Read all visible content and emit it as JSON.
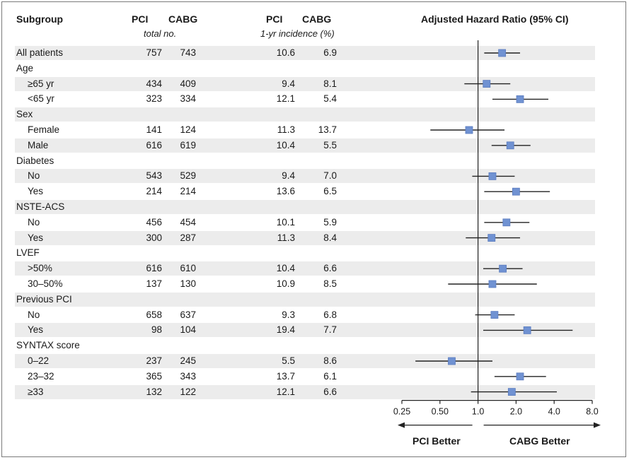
{
  "headers": {
    "subgroup": "Subgroup",
    "pci_n": "PCI",
    "cabg_n": "CABG",
    "counts_sub": "total no.",
    "pci_inc": "PCI",
    "cabg_inc": "CABG",
    "incidence_sub": "1-yr incidence (%)",
    "hr": "Adjusted Hazard Ratio (95% CI)"
  },
  "footer": {
    "left": "PCI Better",
    "right": "CABG Better"
  },
  "colors": {
    "marker": "#7092d2",
    "shade": "#ececec",
    "line": "#222222"
  },
  "chart_data": {
    "type": "forest",
    "xscale": "log2",
    "xlim": [
      0.25,
      8.0
    ],
    "xticks": [
      0.25,
      0.5,
      1.0,
      2.0,
      4.0,
      8.0
    ],
    "xtick_labels": [
      "0.25",
      "0.50",
      "1.0",
      "2.0",
      "4.0",
      "8.0"
    ],
    "reference_line": 1.0,
    "rows": [
      {
        "label": "All patients",
        "indent": false,
        "pci_n": "757",
        "cabg_n": "743",
        "pci_inc": "10.6",
        "cabg_inc": "6.9",
        "hr": 1.55,
        "lo": 1.12,
        "hi": 2.15
      },
      {
        "label": "Age",
        "indent": false,
        "header": true
      },
      {
        "label": "≥65 yr",
        "indent": true,
        "pci_n": "434",
        "cabg_n": "409",
        "pci_inc": "9.4",
        "cabg_inc": "8.1",
        "hr": 1.17,
        "lo": 0.78,
        "hi": 1.8
      },
      {
        "label": "<65 yr",
        "indent": true,
        "pci_n": "323",
        "cabg_n": "334",
        "pci_inc": "12.1",
        "cabg_inc": "5.4",
        "hr": 2.15,
        "lo": 1.3,
        "hi": 3.6
      },
      {
        "label": "Sex",
        "indent": false,
        "header": true
      },
      {
        "label": "Female",
        "indent": true,
        "pci_n": "141",
        "cabg_n": "124",
        "pci_inc": "11.3",
        "cabg_inc": "13.7",
        "hr": 0.85,
        "lo": 0.42,
        "hi": 1.62
      },
      {
        "label": "Male",
        "indent": true,
        "pci_n": "616",
        "cabg_n": "619",
        "pci_inc": "10.4",
        "cabg_inc": "5.5",
        "hr": 1.8,
        "lo": 1.28,
        "hi": 2.6
      },
      {
        "label": "Diabetes",
        "indent": false,
        "header": true
      },
      {
        "label": "No",
        "indent": true,
        "pci_n": "543",
        "cabg_n": "529",
        "pci_inc": "9.4",
        "cabg_inc": "7.0",
        "hr": 1.3,
        "lo": 0.9,
        "hi": 1.95
      },
      {
        "label": "Yes",
        "indent": true,
        "pci_n": "214",
        "cabg_n": "214",
        "pci_inc": "13.6",
        "cabg_inc": "6.5",
        "hr": 2.0,
        "lo": 1.12,
        "hi": 3.7
      },
      {
        "label": "NSTE-ACS",
        "indent": false,
        "header": true
      },
      {
        "label": "No",
        "indent": true,
        "pci_n": "456",
        "cabg_n": "454",
        "pci_inc": "10.1",
        "cabg_inc": "5.9",
        "hr": 1.68,
        "lo": 1.12,
        "hi": 2.55
      },
      {
        "label": "Yes",
        "indent": true,
        "pci_n": "300",
        "cabg_n": "287",
        "pci_inc": "11.3",
        "cabg_inc": "8.4",
        "hr": 1.28,
        "lo": 0.8,
        "hi": 2.15
      },
      {
        "label": "LVEF",
        "indent": false,
        "header": true
      },
      {
        "label": ">50%",
        "indent": true,
        "pci_n": "616",
        "cabg_n": "610",
        "pci_inc": "10.4",
        "cabg_inc": "6.6",
        "hr": 1.57,
        "lo": 1.1,
        "hi": 2.25
      },
      {
        "label": "30–50%",
        "indent": true,
        "pci_n": "137",
        "cabg_n": "130",
        "pci_inc": "10.9",
        "cabg_inc": "8.5",
        "hr": 1.3,
        "lo": 0.58,
        "hi": 2.92
      },
      {
        "label": "Previous PCI",
        "indent": false,
        "header": true
      },
      {
        "label": "No",
        "indent": true,
        "pci_n": "658",
        "cabg_n": "637",
        "pci_inc": "9.3",
        "cabg_inc": "6.8",
        "hr": 1.35,
        "lo": 0.95,
        "hi": 1.95
      },
      {
        "label": "Yes",
        "indent": true,
        "pci_n": "98",
        "cabg_n": "104",
        "pci_inc": "19.4",
        "cabg_inc": "7.7",
        "hr": 2.45,
        "lo": 1.1,
        "hi": 5.6
      },
      {
        "label": "SYNTAX score",
        "indent": false,
        "header": true
      },
      {
        "label": "0–22",
        "indent": true,
        "pci_n": "237",
        "cabg_n": "245",
        "pci_inc": "5.5",
        "cabg_inc": "8.6",
        "hr": 0.62,
        "lo": 0.32,
        "hi": 1.3
      },
      {
        "label": "23–32",
        "indent": true,
        "pci_n": "365",
        "cabg_n": "343",
        "pci_inc": "13.7",
        "cabg_inc": "6.1",
        "hr": 2.15,
        "lo": 1.35,
        "hi": 3.45
      },
      {
        "label": "≥33",
        "indent": true,
        "pci_n": "132",
        "cabg_n": "122",
        "pci_inc": "12.1",
        "cabg_inc": "6.6",
        "hr": 1.85,
        "lo": 0.88,
        "hi": 4.2
      }
    ]
  }
}
